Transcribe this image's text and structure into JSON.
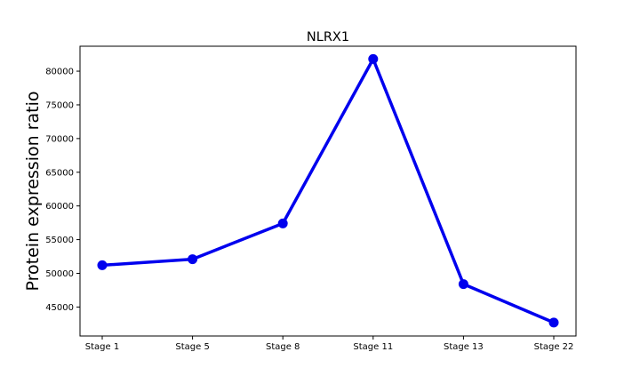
{
  "chart_data": {
    "type": "line",
    "title": "NLRX1",
    "xlabel": "",
    "ylabel": "Protein expression ratio",
    "categories": [
      "Stage 1",
      "Stage 5",
      "Stage 8",
      "Stage 11",
      "Stage 13",
      "Stage 22"
    ],
    "series": [
      {
        "values": [
          51200,
          52100,
          57400,
          81800,
          48400,
          42700
        ]
      }
    ],
    "yticks": [
      45000,
      50000,
      55000,
      60000,
      65000,
      70000,
      75000,
      80000
    ],
    "ylim": [
      40700,
      83700
    ],
    "grid": false,
    "colors": {
      "line": "#0000ee",
      "axis": "#000000"
    }
  }
}
